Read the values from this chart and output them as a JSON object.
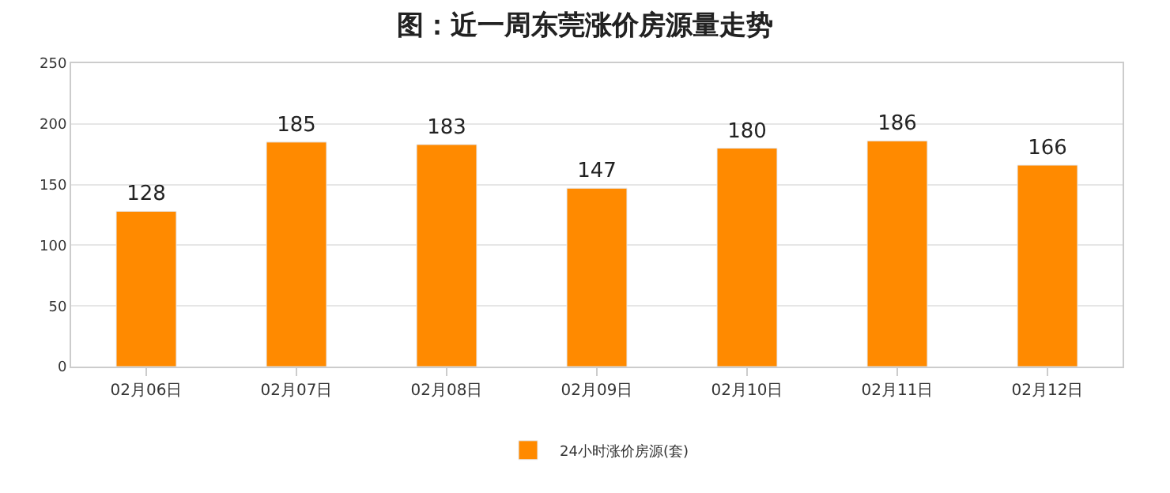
{
  "chart_data": {
    "type": "bar",
    "title": "图：近一周东莞涨价房源量走势",
    "categories": [
      "02月06日",
      "02月07日",
      "02月08日",
      "02月09日",
      "02月10日",
      "02月11日",
      "02月12日"
    ],
    "series": [
      {
        "name": "24小时涨价房源(套)",
        "color": "#ff8a00",
        "values": [
          128,
          185,
          183,
          147,
          180,
          186,
          166
        ]
      }
    ],
    "ylim": [
      0,
      250
    ],
    "yticks": [
      0,
      50,
      100,
      150,
      200,
      250
    ],
    "grid": "y",
    "legend": "bottom",
    "data_labels": true
  }
}
